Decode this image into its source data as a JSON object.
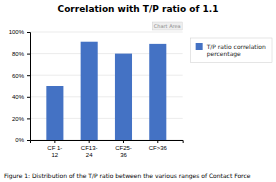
{
  "chart_data": {
    "type": "bar",
    "title": "Correlation with T/P ratio of 1.1",
    "categories": [
      "CF 1-\n12",
      "CF13-\n24",
      "CF25-\n36",
      "CF>36"
    ],
    "series": [
      {
        "name": "T/P ratio correlation\npercentage",
        "color": "#4472C4",
        "values": [
          50,
          91,
          80,
          89
        ]
      }
    ],
    "ylim": [
      0,
      100
    ],
    "yticks": [
      {
        "value": 0,
        "label": "0%"
      },
      {
        "value": 20,
        "label": "20%"
      },
      {
        "value": 40,
        "label": "40%"
      },
      {
        "value": 60,
        "label": "60%"
      },
      {
        "value": 80,
        "label": "80%"
      },
      {
        "value": 100,
        "label": "100%"
      }
    ],
    "grid": true,
    "legend": "right",
    "annotations": [
      "Chart Area"
    ],
    "caption": "Figure 1: Distribution of the T/P ratio between the various ranges of Contact Force"
  }
}
